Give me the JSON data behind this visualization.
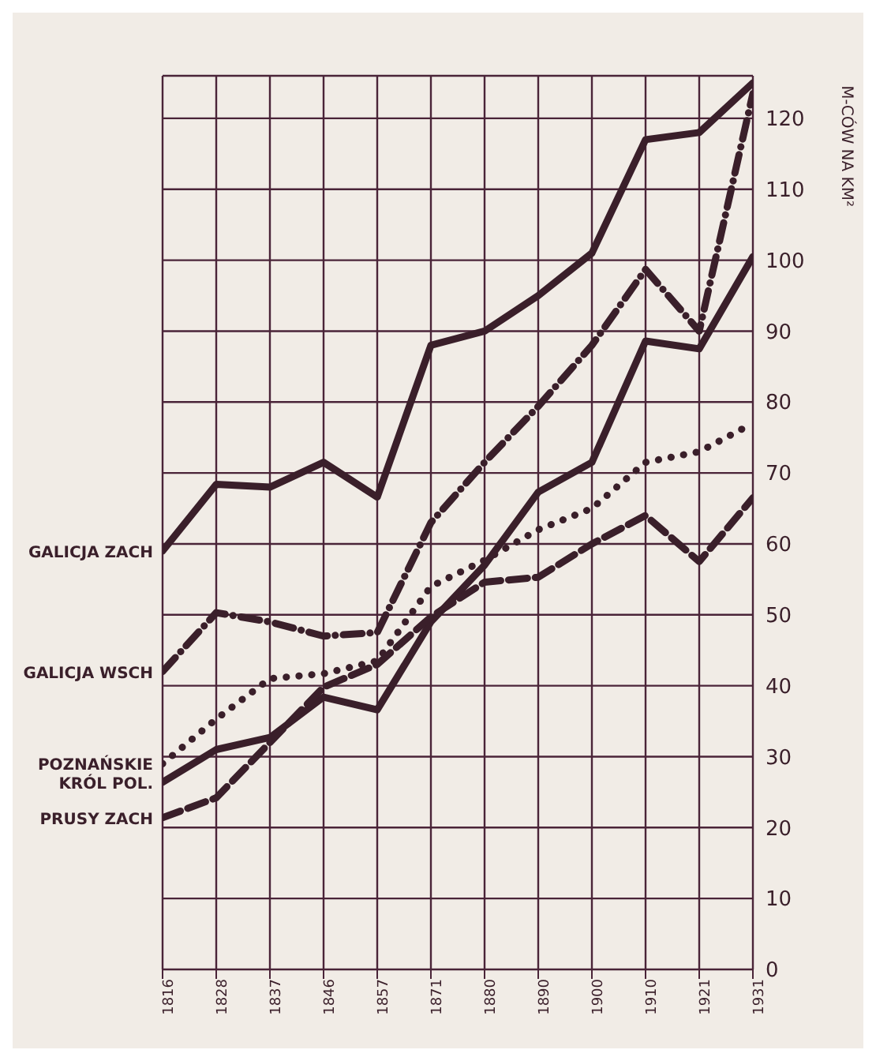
{
  "chart_data": {
    "type": "line",
    "ylabel": "M-CÓW NA KM²",
    "categories": [
      "1816",
      "1828",
      "1837",
      "1846",
      "1857",
      "1871",
      "1880",
      "1890",
      "1900",
      "1910",
      "1921",
      "1931"
    ],
    "series": [
      {
        "name": "GALICJA ZACH",
        "color": "#3a1f2a",
        "line_style": "solid",
        "values": [
          59,
          68.4,
          68,
          71.5,
          66.6,
          88,
          90,
          95,
          101,
          117,
          118,
          125
        ]
      },
      {
        "name": "GALICJA WSCH",
        "color": "#3a1f2a",
        "line_style": "dashdot",
        "values": [
          42,
          50.3,
          49,
          47,
          47.5,
          63,
          71.5,
          79.4,
          88,
          98.7,
          90,
          123.5
        ]
      },
      {
        "name": "POZNAŃSKIE",
        "color": "#3a1f2a",
        "line_style": "dotted",
        "values": [
          29,
          35.3,
          41,
          41.7,
          43.5,
          54,
          57.7,
          62,
          65,
          71.5,
          73,
          77
        ]
      },
      {
        "name": "KRÓL POL.",
        "color": "#3a1f2a",
        "line_style": "solid",
        "values": [
          26.4,
          31,
          32.7,
          38.4,
          36.6,
          49,
          57,
          67.3,
          71.5,
          88.6,
          87.5,
          100.5
        ]
      },
      {
        "name": "PRUSY ZACH",
        "color": "#3a1f2a",
        "line_style": "dashed",
        "values": [
          21.4,
          24.2,
          32,
          39.8,
          43,
          49.7,
          54.6,
          55.3,
          60,
          64,
          57.5,
          66.5
        ]
      }
    ],
    "ylim": [
      0,
      126
    ],
    "yticks": [
      0,
      10,
      20,
      30,
      40,
      50,
      60,
      70,
      80,
      90,
      100,
      110,
      120
    ],
    "grid": true,
    "legend": false,
    "marker": "none"
  }
}
